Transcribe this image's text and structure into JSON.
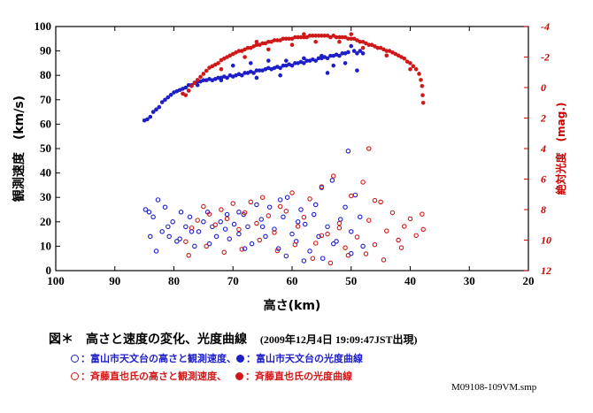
{
  "chart_data": {
    "type": "scatter",
    "xlabel": "高さ(km)",
    "ylabel": "観測速度　(km/s)",
    "y2label": "絶対光度　(mag.)",
    "xlim": [
      100,
      20
    ],
    "ylim": [
      0,
      100
    ],
    "y2lim": [
      12,
      -4
    ],
    "x_ticks": [
      100,
      90,
      80,
      70,
      60,
      50,
      40,
      30,
      20
    ],
    "y_ticks": [
      0,
      10,
      20,
      30,
      40,
      50,
      60,
      70,
      80,
      90,
      100
    ],
    "y2_ticks": [
      12,
      10,
      8,
      6,
      4,
      2,
      0,
      -2,
      -4
    ],
    "colors": {
      "blue": "#1e1ec8",
      "red": "#d01818"
    },
    "series": [
      {
        "legend": "富山市天文台の高さと観測速度",
        "color": "#1e1ec8",
        "marker": "open",
        "axis": "left",
        "points": [
          [
            84.8,
            25
          ],
          [
            84.2,
            24
          ],
          [
            83.5,
            22
          ],
          [
            82.7,
            29
          ],
          [
            82.0,
            16
          ],
          [
            81.5,
            26
          ],
          [
            80.8,
            14
          ],
          [
            80.2,
            20
          ],
          [
            79.5,
            12
          ],
          [
            78.8,
            24
          ],
          [
            78.0,
            18
          ],
          [
            77.3,
            22
          ],
          [
            76.5,
            10
          ],
          [
            75.8,
            16
          ],
          [
            75.0,
            20
          ],
          [
            74.3,
            24
          ],
          [
            73.5,
            18
          ],
          [
            72.8,
            14
          ],
          [
            72.1,
            20
          ],
          [
            71.3,
            17
          ],
          [
            70.6,
            13
          ],
          [
            69.8,
            19
          ],
          [
            69.0,
            15
          ],
          [
            68.2,
            23
          ],
          [
            67.5,
            18
          ],
          [
            66.8,
            11
          ],
          [
            66.0,
            27
          ],
          [
            65.2,
            21
          ],
          [
            64.5,
            14
          ],
          [
            63.8,
            26
          ],
          [
            63.0,
            17
          ],
          [
            62.3,
            9
          ],
          [
            61.5,
            22
          ],
          [
            60.8,
            30
          ],
          [
            60.0,
            15
          ],
          [
            59.3,
            12
          ],
          [
            58.5,
            25
          ],
          [
            57.8,
            19
          ],
          [
            57.0,
            8
          ],
          [
            56.3,
            23
          ],
          [
            55.5,
            14
          ],
          [
            54.8,
            5
          ],
          [
            54.0,
            18
          ],
          [
            53.2,
            37
          ],
          [
            52.5,
            12
          ],
          [
            51.8,
            21
          ],
          [
            51.0,
            26
          ],
          [
            50.5,
            49
          ],
          [
            50.0,
            16
          ],
          [
            49.3,
            31
          ],
          [
            48.5,
            22
          ],
          [
            48.0,
            10
          ],
          [
            84.0,
            14
          ],
          [
            83.0,
            8
          ],
          [
            81.0,
            18
          ],
          [
            79.0,
            13
          ],
          [
            77.0,
            16
          ],
          [
            74.0,
            11
          ],
          [
            71.0,
            23
          ],
          [
            68.0,
            9
          ],
          [
            65.0,
            18
          ],
          [
            62.0,
            29
          ],
          [
            59.0,
            20
          ],
          [
            56.0,
            27
          ],
          [
            53.0,
            11
          ],
          [
            50.0,
            7
          ],
          [
            58.0,
            4
          ],
          [
            55.0,
            34
          ],
          [
            61.0,
            6
          ],
          [
            69.0,
            24
          ]
        ]
      },
      {
        "legend": "富山市天文台の光度曲線",
        "color": "#1e1ec8",
        "marker": "filled",
        "axis": "left",
        "points": [
          [
            85,
            61.5
          ],
          [
            84.5,
            62
          ],
          [
            84,
            63
          ],
          [
            83.5,
            65
          ],
          [
            83,
            66
          ],
          [
            82.5,
            67
          ],
          [
            82,
            69
          ],
          [
            81.5,
            70
          ],
          [
            81,
            71
          ],
          [
            80.5,
            72
          ],
          [
            80,
            73
          ],
          [
            79.5,
            73.5
          ],
          [
            79,
            74
          ],
          [
            78.5,
            74.5
          ],
          [
            78,
            75
          ],
          [
            77.5,
            76
          ],
          [
            77,
            76
          ],
          [
            76.5,
            77
          ],
          [
            76,
            77.5
          ],
          [
            75.5,
            77.5
          ],
          [
            75,
            78
          ],
          [
            74.5,
            78
          ],
          [
            74,
            78.5
          ],
          [
            73.5,
            78
          ],
          [
            73,
            78.5
          ],
          [
            72.5,
            79
          ],
          [
            72,
            79
          ],
          [
            71.5,
            79.5
          ],
          [
            71,
            79
          ],
          [
            70.5,
            80
          ],
          [
            70,
            79.5
          ],
          [
            69.5,
            80
          ],
          [
            69,
            80.5
          ],
          [
            68.5,
            80
          ],
          [
            68,
            81
          ],
          [
            67.5,
            81
          ],
          [
            67,
            81.5
          ],
          [
            66.5,
            81
          ],
          [
            66,
            82
          ],
          [
            65.5,
            82
          ],
          [
            65,
            82
          ],
          [
            64.5,
            82.5
          ],
          [
            64,
            83
          ],
          [
            63.5,
            82.5
          ],
          [
            63,
            83
          ],
          [
            62.5,
            83.5
          ],
          [
            62,
            83
          ],
          [
            61.5,
            84
          ],
          [
            61,
            84
          ],
          [
            60.5,
            84.5
          ],
          [
            60,
            84
          ],
          [
            59.5,
            85
          ],
          [
            59,
            85
          ],
          [
            58.5,
            85.5
          ],
          [
            58,
            85
          ],
          [
            57.5,
            86
          ],
          [
            57,
            86
          ],
          [
            56.5,
            86.5
          ],
          [
            56,
            86
          ],
          [
            55.5,
            87
          ],
          [
            55,
            87
          ],
          [
            54.5,
            87.5
          ],
          [
            54,
            87
          ],
          [
            53.5,
            88
          ],
          [
            53,
            88
          ],
          [
            52.5,
            88.5
          ],
          [
            52,
            88
          ],
          [
            51.5,
            89
          ],
          [
            51,
            89
          ],
          [
            50.5,
            89.5
          ],
          [
            50,
            92
          ],
          [
            49.5,
            90
          ],
          [
            49,
            89
          ],
          [
            48.5,
            90
          ],
          [
            48,
            89
          ],
          [
            70,
            84
          ],
          [
            67,
            85
          ],
          [
            64,
            86
          ],
          [
            61,
            86
          ],
          [
            58,
            87
          ],
          [
            55,
            88
          ],
          [
            53,
            84
          ],
          [
            51,
            85
          ],
          [
            49,
            82
          ],
          [
            54,
            81
          ],
          [
            62,
            80
          ],
          [
            66,
            79
          ],
          [
            72,
            78
          ],
          [
            76,
            76
          ]
        ]
      },
      {
        "legend": "斉藤直也氏の高さと観測速度",
        "color": "#d01818",
        "marker": "open",
        "axis": "right",
        "points": [
          [
            78,
            10.1
          ],
          [
            77,
            9.2
          ],
          [
            76,
            8.7
          ],
          [
            75,
            7.8
          ],
          [
            74,
            8.3
          ],
          [
            73,
            9.0
          ],
          [
            72,
            8.0
          ],
          [
            71,
            8.6
          ],
          [
            70,
            7.6
          ],
          [
            69,
            9.3
          ],
          [
            68,
            8.2
          ],
          [
            67,
            7.5
          ],
          [
            66,
            8.9
          ],
          [
            65,
            7.2
          ],
          [
            64,
            8.4
          ],
          [
            63,
            9.5
          ],
          [
            62,
            7.8
          ],
          [
            61,
            8.1
          ],
          [
            60,
            6.9
          ],
          [
            59,
            9.1
          ],
          [
            58,
            8.5
          ],
          [
            57,
            7.3
          ],
          [
            56,
            10.2
          ],
          [
            55,
            6.5
          ],
          [
            54,
            9.6
          ],
          [
            53,
            5.8
          ],
          [
            52,
            8.9
          ],
          [
            51,
            10.5
          ],
          [
            50,
            7.1
          ],
          [
            49,
            9.8
          ],
          [
            48,
            6.2
          ],
          [
            47,
            8.7
          ],
          [
            46,
            10.3
          ],
          [
            45,
            7.5
          ],
          [
            44,
            9.4
          ],
          [
            43,
            8.2
          ],
          [
            42,
            10.0
          ],
          [
            41,
            9.1
          ],
          [
            40,
            8.6
          ],
          [
            39,
            9.7
          ],
          [
            38,
            8.3
          ],
          [
            37.8,
            9.3
          ],
          [
            77.5,
            11.0
          ],
          [
            74.5,
            10.4
          ],
          [
            71.5,
            10.8
          ],
          [
            68.5,
            10.6
          ],
          [
            65.5,
            10.0
          ],
          [
            62.5,
            10.7
          ],
          [
            59.5,
            10.3
          ],
          [
            56.5,
            11.2
          ],
          [
            53.5,
            11.5
          ],
          [
            50.5,
            11.0
          ],
          [
            47.5,
            10.9
          ],
          [
            44.5,
            11.3
          ],
          [
            41.5,
            10.5
          ],
          [
            47,
            4.0
          ],
          [
            46,
            7.4
          ],
          [
            52,
            9.2
          ],
          [
            55,
            9.7
          ]
        ]
      },
      {
        "legend": "斉藤直也氏の光度曲線",
        "color": "#d01818",
        "marker": "filled",
        "axis": "right",
        "points": [
          [
            78.5,
            0.4
          ],
          [
            78,
            0.5
          ],
          [
            77.5,
            0.2
          ],
          [
            77,
            -0.1
          ],
          [
            76.5,
            -0.3
          ],
          [
            76,
            -0.5
          ],
          [
            75.5,
            -0.7
          ],
          [
            75,
            -0.9
          ],
          [
            74.5,
            -1.1
          ],
          [
            74,
            -1.3
          ],
          [
            73.5,
            -1.4
          ],
          [
            73,
            -1.5
          ],
          [
            72.5,
            -1.6
          ],
          [
            72,
            -1.8
          ],
          [
            71.5,
            -1.9
          ],
          [
            71,
            -2.0
          ],
          [
            70.5,
            -2.1
          ],
          [
            70,
            -2.2
          ],
          [
            69.5,
            -2.3
          ],
          [
            69,
            -2.4
          ],
          [
            68.5,
            -2.4
          ],
          [
            68,
            -2.5
          ],
          [
            67.5,
            -2.6
          ],
          [
            67,
            -2.6
          ],
          [
            66.5,
            -2.7
          ],
          [
            66,
            -2.8
          ],
          [
            65.5,
            -2.8
          ],
          [
            65,
            -2.9
          ],
          [
            64.5,
            -2.9
          ],
          [
            64,
            -3.0
          ],
          [
            63.5,
            -3.0
          ],
          [
            63,
            -3.1
          ],
          [
            62.5,
            -3.1
          ],
          [
            62,
            -3.1
          ],
          [
            61.5,
            -3.2
          ],
          [
            61,
            -3.2
          ],
          [
            60.5,
            -3.2
          ],
          [
            60,
            -3.2
          ],
          [
            59.5,
            -3.3
          ],
          [
            59,
            -3.3
          ],
          [
            58.5,
            -3.3
          ],
          [
            58,
            -3.3
          ],
          [
            57.5,
            -3.3
          ],
          [
            57,
            -3.4
          ],
          [
            56.5,
            -3.4
          ],
          [
            56,
            -3.4
          ],
          [
            55.5,
            -3.4
          ],
          [
            55,
            -3.4
          ],
          [
            54.5,
            -3.4
          ],
          [
            54,
            -3.4
          ],
          [
            53.5,
            -3.3
          ],
          [
            53,
            -3.4
          ],
          [
            52.5,
            -3.3
          ],
          [
            52,
            -3.3
          ],
          [
            51.5,
            -3.3
          ],
          [
            51,
            -3.3
          ],
          [
            50.5,
            -3.2
          ],
          [
            50,
            -3.2
          ],
          [
            49.5,
            -3.2
          ],
          [
            49,
            -3.1
          ],
          [
            48.5,
            -3.0
          ],
          [
            48,
            -3.0
          ],
          [
            47.5,
            -2.9
          ],
          [
            47,
            -2.8
          ],
          [
            46.5,
            -2.8
          ],
          [
            46,
            -2.7
          ],
          [
            45.5,
            -2.6
          ],
          [
            45,
            -2.6
          ],
          [
            44.5,
            -2.5
          ],
          [
            44,
            -2.4
          ],
          [
            43.5,
            -2.4
          ],
          [
            43,
            -2.3
          ],
          [
            42.5,
            -2.2
          ],
          [
            42,
            -2.1
          ],
          [
            41.5,
            -2.0
          ],
          [
            41,
            -1.9
          ],
          [
            40.5,
            -1.7
          ],
          [
            40,
            -1.6
          ],
          [
            39.5,
            -1.4
          ],
          [
            39,
            -1.2
          ],
          [
            38.5,
            -0.9
          ],
          [
            38.2,
            -0.5
          ],
          [
            38,
            -0.1
          ],
          [
            37.9,
            0.5
          ],
          [
            37.8,
            1.0
          ],
          [
            72,
            -1.2
          ],
          [
            68,
            -2.0
          ],
          [
            64,
            -2.5
          ],
          [
            60,
            -2.8
          ],
          [
            56,
            -3.0
          ],
          [
            52,
            -3.0
          ],
          [
            48,
            -2.6
          ],
          [
            44,
            -2.1
          ],
          [
            40,
            -1.2
          ],
          [
            66,
            -3.0
          ],
          [
            58,
            -3.5
          ],
          [
            50,
            -3.5
          ]
        ]
      }
    ]
  },
  "caption": {
    "title": "図＊　高さと速度の変化、光度曲線",
    "date": "(2009年12月4日 19:09:47JST出現)"
  },
  "legend": {
    "blue_open": "：富山市天文台の高さと観測速度、",
    "blue_filled": "：富山市天文台の光度曲線",
    "red_open": "：斉藤直也氏の高さと観測速度、",
    "red_filled": "：斉藤直也氏の光度曲線"
  },
  "filename": "M09108-109VM.smp"
}
